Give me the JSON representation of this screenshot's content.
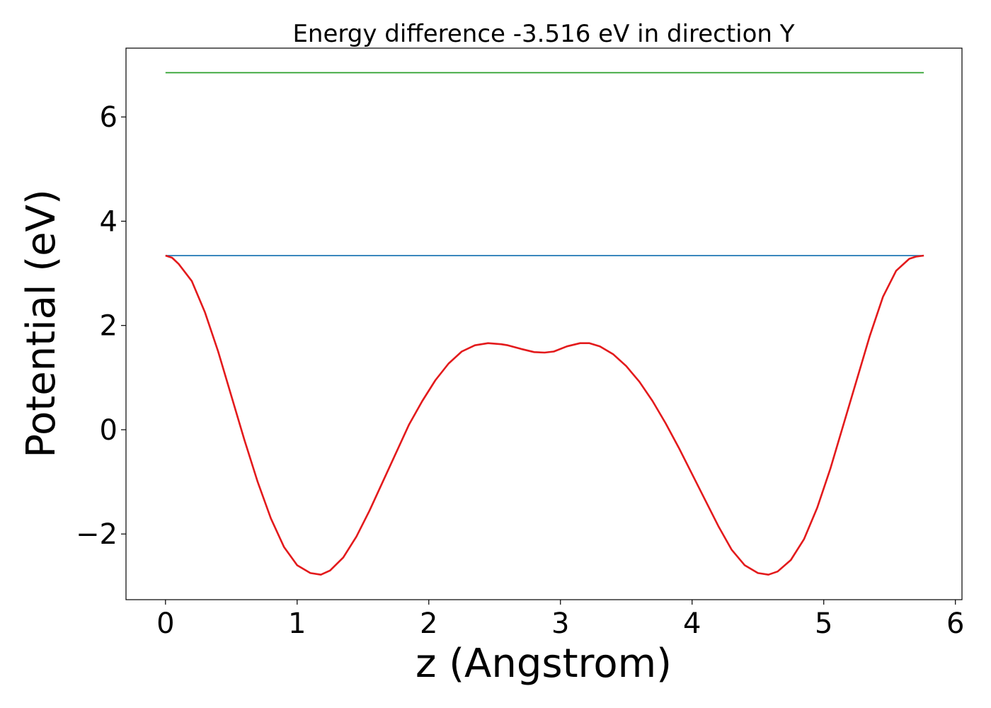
{
  "chart_data": {
    "type": "line",
    "title": "Energy difference -3.516 eV in direction Y",
    "xlabel": "z (Angstrom)",
    "ylabel": "Potential (eV)",
    "xlim": [
      -0.3,
      6.05
    ],
    "ylim": [
      -3.26,
      7.32
    ],
    "xticks": [
      0,
      1,
      2,
      3,
      4,
      5,
      6
    ],
    "xtick_labels": [
      "0",
      "1",
      "2",
      "3",
      "4",
      "5",
      "6"
    ],
    "yticks": [
      -2,
      0,
      2,
      4,
      6
    ],
    "ytick_labels": [
      "−2",
      "0",
      "2",
      "4",
      "6"
    ],
    "grid": false,
    "series": [
      {
        "color": "#2ca02c",
        "x": [
          0,
          5.76
        ],
        "y": [
          6.85,
          6.85
        ]
      },
      {
        "color": "#1f77b4",
        "x": [
          0,
          5.76
        ],
        "y": [
          3.34,
          3.34
        ]
      },
      {
        "color": "#e31a1c",
        "x": [
          0,
          0.05,
          0.1,
          0.2,
          0.3,
          0.4,
          0.5,
          0.6,
          0.7,
          0.8,
          0.9,
          1.0,
          1.1,
          1.18,
          1.25,
          1.35,
          1.45,
          1.55,
          1.65,
          1.75,
          1.85,
          1.95,
          2.05,
          2.15,
          2.25,
          2.35,
          2.45,
          2.55,
          2.6,
          2.7,
          2.8,
          2.88,
          2.95,
          3.05,
          3.15,
          3.22,
          3.3,
          3.4,
          3.5,
          3.6,
          3.7,
          3.8,
          3.9,
          4.0,
          4.1,
          4.2,
          4.3,
          4.4,
          4.5,
          4.58,
          4.65,
          4.75,
          4.85,
          4.95,
          5.05,
          5.15,
          5.25,
          5.35,
          5.45,
          5.55,
          5.65,
          5.7,
          5.76
        ],
        "y": [
          3.34,
          3.3,
          3.18,
          2.85,
          2.25,
          1.5,
          0.65,
          -0.2,
          -1.0,
          -1.7,
          -2.25,
          -2.6,
          -2.75,
          -2.78,
          -2.7,
          -2.45,
          -2.05,
          -1.55,
          -1.0,
          -0.45,
          0.1,
          0.55,
          0.95,
          1.27,
          1.5,
          1.62,
          1.66,
          1.64,
          1.62,
          1.55,
          1.49,
          1.48,
          1.5,
          1.6,
          1.66,
          1.66,
          1.6,
          1.45,
          1.22,
          0.92,
          0.55,
          0.12,
          -0.35,
          -0.85,
          -1.35,
          -1.85,
          -2.3,
          -2.6,
          -2.75,
          -2.78,
          -2.72,
          -2.5,
          -2.1,
          -1.5,
          -0.75,
          0.1,
          0.95,
          1.8,
          2.55,
          3.05,
          3.28,
          3.32,
          3.34
        ]
      }
    ]
  }
}
